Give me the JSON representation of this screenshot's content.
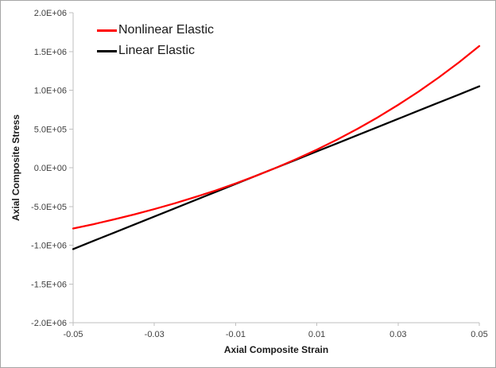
{
  "chart_data": {
    "type": "line",
    "title": "",
    "xlabel": "Axial Composite Strain",
    "ylabel": "Axial Composite Stress",
    "xlim": [
      -0.05,
      0.05
    ],
    "ylim": [
      -2000000,
      2000000
    ],
    "grid": false,
    "legend_position": "top-left-inside",
    "x_ticks": {
      "values": [
        -0.05,
        -0.03,
        -0.01,
        0.01,
        0.03,
        0.05
      ],
      "labels": [
        "-0.05",
        "-0.03",
        "-0.01",
        "0.01",
        "0.03",
        "0.05"
      ]
    },
    "y_ticks": {
      "values": [
        2000000,
        1500000,
        1000000,
        500000,
        0,
        -500000,
        -1000000,
        -1500000,
        -2000000
      ],
      "labels": [
        "2.0E+06",
        "1.5E+06",
        "1.0E+06",
        "5.0E+05",
        "0.0E+00",
        "-5.0E+05",
        "-1.0E+06",
        "-1.5E+06",
        "-2.0E+06"
      ]
    },
    "x": [
      -0.05,
      -0.045,
      -0.04,
      -0.035,
      -0.03,
      -0.025,
      -0.02,
      -0.015,
      -0.01,
      -0.005,
      0,
      0.005,
      0.01,
      0.015,
      0.02,
      0.025,
      0.03,
      0.035,
      0.04,
      0.045,
      0.05
    ],
    "series": [
      {
        "name": "Nonlinear Elastic",
        "color": "#FF0000",
        "values": [
          -785000,
          -729000,
          -668000,
          -604000,
          -534000,
          -460000,
          -380000,
          -295000,
          -203000,
          -105000,
          0,
          113000,
          233000,
          363000,
          502000,
          650000,
          810000,
          980000,
          1164000,
          1360000,
          1570000
        ]
      },
      {
        "name": "Linear Elastic",
        "color": "#000000",
        "values": [
          -1050000,
          -945000,
          -840000,
          -735000,
          -630000,
          -525000,
          -420000,
          -315000,
          -210000,
          -105000,
          0,
          105000,
          210000,
          315000,
          420000,
          525000,
          630000,
          735000,
          840000,
          945000,
          1050000
        ]
      }
    ],
    "colors": {
      "axis_line": "#BFBFBF",
      "tick_label": "#404040",
      "axis_title": "#1A1A1A",
      "chart_border": "#A6A6A6"
    }
  }
}
